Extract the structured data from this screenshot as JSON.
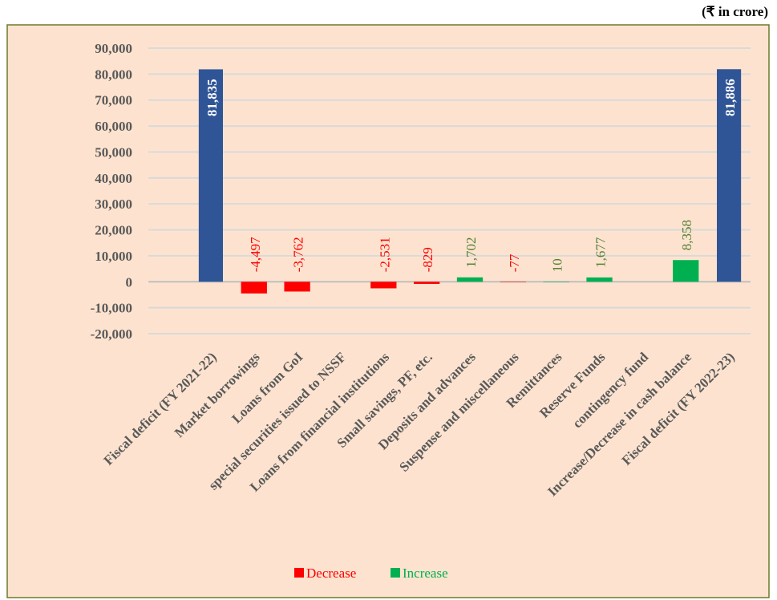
{
  "note": "(₹ in crore)",
  "chart_data": {
    "type": "waterfall",
    "categories": [
      "Fiscal deficit (FY 2021-22)",
      "Market borrowings",
      "Loans from GoI",
      "special securities issued to NSSF",
      "Loans from financial institutions",
      "Small savings, PF, etc.",
      "Deposits and advances",
      "Suspense and miscellaneous",
      "Remittances",
      "Reserve Funds",
      "contingency fund",
      "Increase/Decrease in cash balance",
      "Fiscal deficit (FY 2022-23)"
    ],
    "values": [
      81835,
      -4497,
      -3762,
      null,
      -2531,
      -829,
      1702,
      -77,
      10,
      1677,
      null,
      8358,
      81886
    ],
    "value_labels": [
      "81,835",
      "-4,497",
      "-3,762",
      null,
      "-2,531",
      "-829",
      "1,702",
      "-77",
      "10",
      "1,677",
      null,
      "8,358",
      "81,886"
    ],
    "total_color": "#2f5597",
    "series": [
      {
        "name": "Decrease",
        "color": "#ff0000"
      },
      {
        "name": "Increase",
        "color": "#00b050"
      }
    ],
    "ylim": [
      -20000,
      90000
    ],
    "yticks": [
      {
        "value": -20000,
        "label": "-20,000"
      },
      {
        "value": -10000,
        "label": "-10,000"
      },
      0,
      {
        "value": 10000,
        "label": "10,000"
      },
      {
        "value": 20000,
        "label": "20,000"
      },
      {
        "value": 30000,
        "label": "30,000"
      },
      {
        "value": 40000,
        "label": "40,000"
      },
      {
        "value": 50000,
        "label": "50,000"
      },
      {
        "value": 60000,
        "label": "60,000"
      },
      {
        "value": 70000,
        "label": "70,000"
      },
      {
        "value": 80000,
        "label": "80,000"
      },
      {
        "value": 90000,
        "label": "90,000"
      }
    ],
    "grid": true,
    "legend": "bottom"
  }
}
